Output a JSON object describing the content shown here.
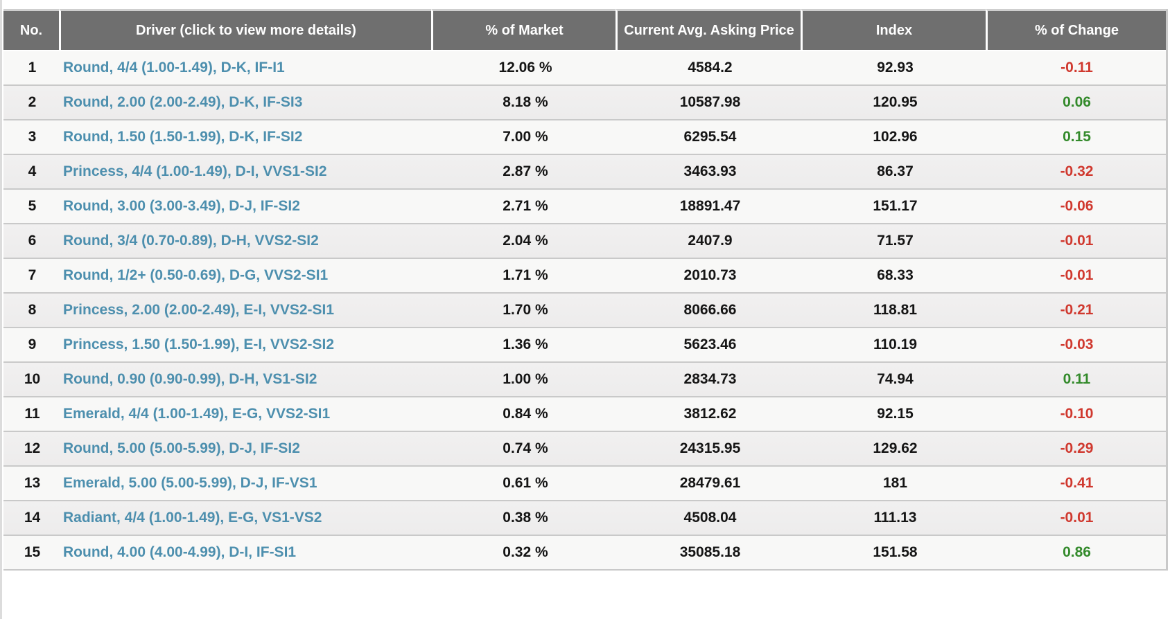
{
  "table": {
    "columns": [
      {
        "label": "No."
      },
      {
        "label": "Driver (click to view more details)"
      },
      {
        "label": "% of Market"
      },
      {
        "label": "Current Avg. Asking Price"
      },
      {
        "label": "Index"
      },
      {
        "label": "% of Change"
      }
    ],
    "rows": [
      {
        "no": "1",
        "driver": "Round, 4/4 (1.00-1.49), D-K, IF-I1",
        "market": "12.06 %",
        "price": "4584.2",
        "index": "92.93",
        "change": "-0.11"
      },
      {
        "no": "2",
        "driver": "Round, 2.00 (2.00-2.49), D-K, IF-SI3",
        "market": "8.18 %",
        "price": "10587.98",
        "index": "120.95",
        "change": "0.06"
      },
      {
        "no": "3",
        "driver": "Round, 1.50 (1.50-1.99), D-K, IF-SI2",
        "market": "7.00 %",
        "price": "6295.54",
        "index": "102.96",
        "change": "0.15"
      },
      {
        "no": "4",
        "driver": "Princess, 4/4 (1.00-1.49), D-I, VVS1-SI2",
        "market": "2.87 %",
        "price": "3463.93",
        "index": "86.37",
        "change": "-0.32"
      },
      {
        "no": "5",
        "driver": "Round, 3.00 (3.00-3.49), D-J, IF-SI2",
        "market": "2.71 %",
        "price": "18891.47",
        "index": "151.17",
        "change": "-0.06"
      },
      {
        "no": "6",
        "driver": "Round, 3/4 (0.70-0.89), D-H, VVS2-SI2",
        "market": "2.04 %",
        "price": "2407.9",
        "index": "71.57",
        "change": "-0.01"
      },
      {
        "no": "7",
        "driver": "Round, 1/2+ (0.50-0.69), D-G, VVS2-SI1",
        "market": "1.71 %",
        "price": "2010.73",
        "index": "68.33",
        "change": "-0.01"
      },
      {
        "no": "8",
        "driver": "Princess, 2.00 (2.00-2.49), E-I, VVS2-SI1",
        "market": "1.70 %",
        "price": "8066.66",
        "index": "118.81",
        "change": "-0.21"
      },
      {
        "no": "9",
        "driver": "Princess, 1.50 (1.50-1.99), E-I, VVS2-SI2",
        "market": "1.36 %",
        "price": "5623.46",
        "index": "110.19",
        "change": "-0.03"
      },
      {
        "no": "10",
        "driver": "Round, 0.90 (0.90-0.99), D-H, VS1-SI2",
        "market": "1.00 %",
        "price": "2834.73",
        "index": "74.94",
        "change": "0.11"
      },
      {
        "no": "11",
        "driver": "Emerald, 4/4 (1.00-1.49), E-G, VVS2-SI1",
        "market": "0.84 %",
        "price": "3812.62",
        "index": "92.15",
        "change": "-0.10"
      },
      {
        "no": "12",
        "driver": "Round, 5.00 (5.00-5.99), D-J, IF-SI2",
        "market": "0.74 %",
        "price": "24315.95",
        "index": "129.62",
        "change": "-0.29"
      },
      {
        "no": "13",
        "driver": "Emerald, 5.00 (5.00-5.99), D-J, IF-VS1",
        "market": "0.61 %",
        "price": "28479.61",
        "index": "181",
        "change": "-0.41"
      },
      {
        "no": "14",
        "driver": "Radiant, 4/4 (1.00-1.49), E-G, VS1-VS2",
        "market": "0.38 %",
        "price": "4508.04",
        "index": "111.13",
        "change": "-0.01"
      },
      {
        "no": "15",
        "driver": "Round, 4.00 (4.00-4.99), D-I, IF-SI1",
        "market": "0.32 %",
        "price": "35085.18",
        "index": "151.58",
        "change": "0.86"
      }
    ]
  },
  "colors": {
    "header_bg": "#6f6f6f",
    "header_text": "#ffffff",
    "link": "#4d8fae",
    "positive": "#338a2b",
    "negative": "#d0392f",
    "row_odd": "#f8f8f7",
    "row_even": "#edecec",
    "row_border": "#c9c9c9",
    "value_text": "#151515"
  }
}
